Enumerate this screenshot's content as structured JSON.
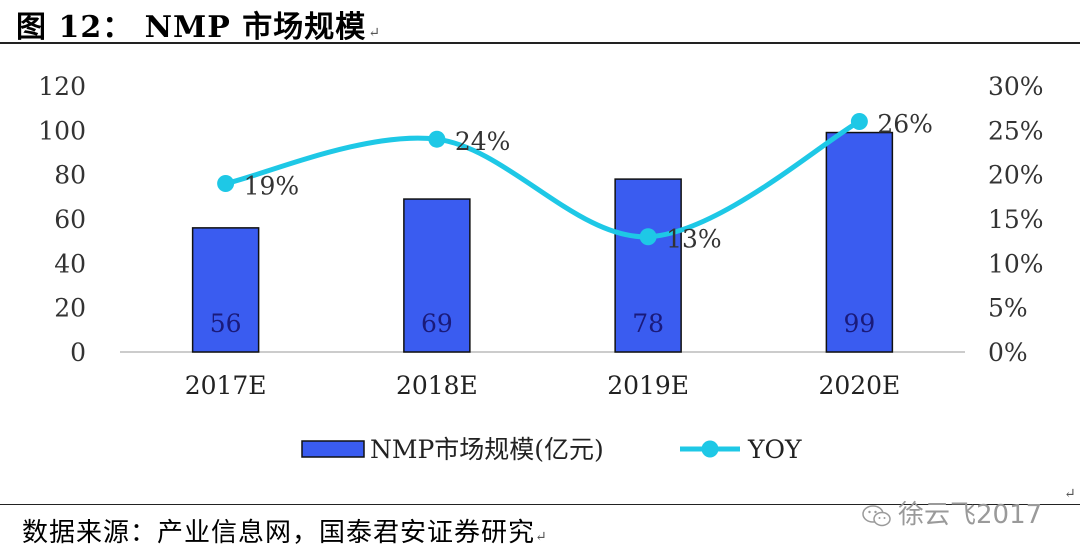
{
  "header": {
    "title": "图 12： NMP 市场规模",
    "title_mark": "↵"
  },
  "footer": {
    "source": "数据来源：产业信息网，国泰君安证券研究",
    "source_mark": "↵",
    "side_mark": "↵"
  },
  "watermark": {
    "text": "徐云飞2017",
    "icon": "wechat-icon"
  },
  "colors": {
    "bar": "#3a5cf0",
    "bar_stroke": "#111111",
    "line": "#1ec8e6",
    "axis": "#bbbbbb"
  },
  "chart_data": {
    "type": "bar",
    "title": "",
    "categories": [
      "2017E",
      "2018E",
      "2019E",
      "2020E"
    ],
    "series": [
      {
        "name": "NMP市场规模(亿元)",
        "type": "bar",
        "axis": "left",
        "values": [
          56,
          69,
          78,
          99
        ],
        "labels": [
          "56",
          "69",
          "78",
          "99"
        ]
      },
      {
        "name": "YOY",
        "type": "line",
        "smooth": true,
        "marker": "circle",
        "axis": "right",
        "values": [
          0.19,
          0.24,
          0.13,
          0.26
        ],
        "labels": [
          "19%",
          "24%",
          "13%",
          "26%"
        ]
      }
    ],
    "y_left": {
      "min": 0,
      "max": 120,
      "ticks": [
        "0",
        "20",
        "40",
        "60",
        "80",
        "100",
        "120"
      ]
    },
    "y_right": {
      "min": 0,
      "max": 0.3,
      "ticks": [
        "0%",
        "5%",
        "10%",
        "15%",
        "20%",
        "25%",
        "30%"
      ]
    },
    "grid": false,
    "legend": "bottom"
  }
}
